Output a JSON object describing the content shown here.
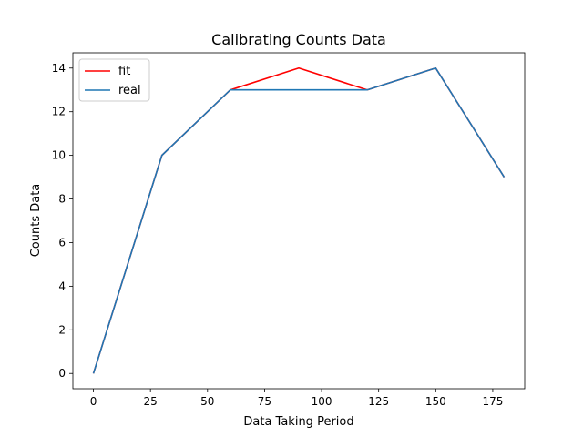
{
  "chart_data": {
    "type": "line",
    "title": "Calibrating Counts Data",
    "xlabel": "Data Taking Period",
    "ylabel": "Counts Data",
    "x": [
      0,
      30,
      60,
      90,
      120,
      150,
      180
    ],
    "series": [
      {
        "name": "fit",
        "color": "#ff0000",
        "values": [
          0,
          10,
          13,
          14,
          13,
          14,
          9
        ]
      },
      {
        "name": "real",
        "color": "#1f77b4",
        "values": [
          0,
          10,
          13,
          13,
          13,
          14,
          9
        ]
      }
    ],
    "xlim": [
      -9,
      189
    ],
    "ylim": [
      -0.7,
      14.7
    ],
    "xticks": [
      "0",
      "25",
      "50",
      "75",
      "100",
      "125",
      "150",
      "175"
    ],
    "yticks": [
      "0",
      "2",
      "4",
      "6",
      "8",
      "10",
      "12",
      "14"
    ],
    "legend": "top-left",
    "grid": false
  }
}
